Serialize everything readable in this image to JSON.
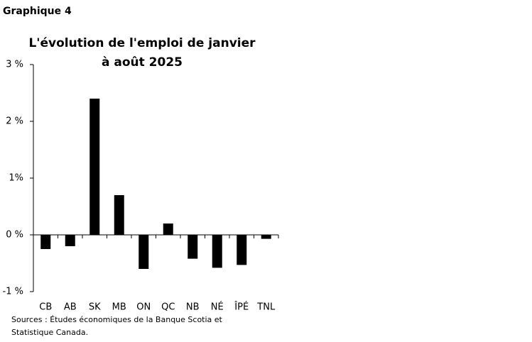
{
  "header": "Graphique 4",
  "chart_data": {
    "type": "bar",
    "title": [
      "L'évolution de l'emploi de janvier",
      "à août 2025"
    ],
    "categories": [
      "CB",
      "AB",
      "SK",
      "MB",
      "ON",
      "QC",
      "NB",
      "NÉ",
      "ÎPÉ",
      "TNL"
    ],
    "values": [
      -0.25,
      -0.2,
      2.4,
      0.7,
      -0.6,
      0.2,
      -0.42,
      -0.58,
      -0.53,
      -0.07
    ],
    "color": "#000000",
    "ylim": [
      -1,
      3
    ],
    "yticks": [
      {
        "value": 3,
        "label": "3 %"
      },
      {
        "value": 2,
        "label": "2 %"
      },
      {
        "value": 1,
        "label": "1%"
      },
      {
        "value": 0,
        "label": "0 %"
      },
      {
        "value": -1,
        "label": "-1 %"
      }
    ],
    "grid": false
  },
  "source": [
    "Sources : Études économiques de la Banque Scotia et",
    "Statistique Canada."
  ]
}
